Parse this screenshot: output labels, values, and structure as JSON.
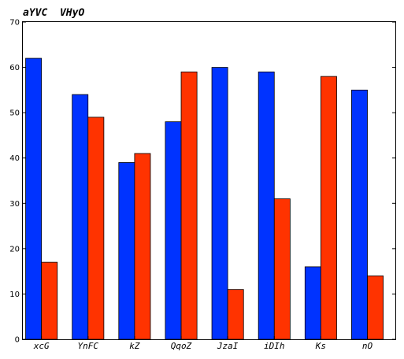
{
  "chart_data": {
    "type": "bar",
    "title": "aYVC  VHyO",
    "xlabel": "",
    "ylabel": "",
    "categories": [
      "xcG",
      "YnFC",
      "kZ",
      "QqoZ",
      "JzaI",
      "iDIh",
      "Ks",
      "nO"
    ],
    "series": [
      {
        "values": [
          62,
          54,
          39,
          48,
          60,
          59,
          16,
          55
        ],
        "color": "#0033ff"
      },
      {
        "values": [
          17,
          49,
          41,
          59,
          11,
          31,
          58,
          14
        ],
        "color": "#ff3300"
      }
    ],
    "ylim": [
      0,
      70
    ],
    "yticks": [
      0,
      10,
      20,
      30,
      40,
      50,
      60,
      70
    ],
    "grid": false,
    "legend": "none"
  }
}
